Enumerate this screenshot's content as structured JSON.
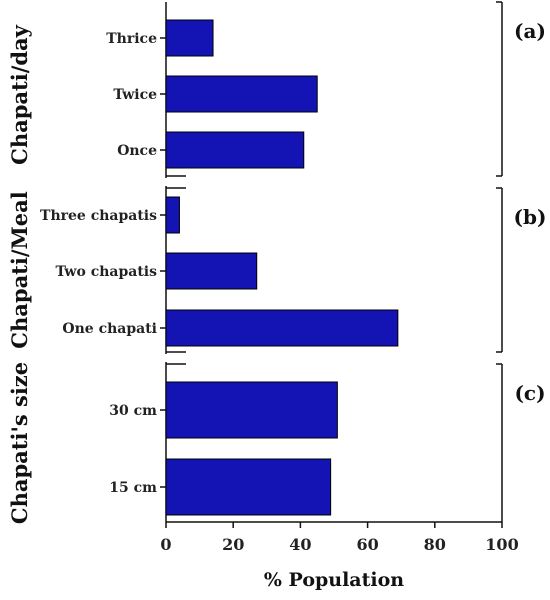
{
  "chart_data": {
    "type": "bar",
    "orientation": "horizontal",
    "xlabel": "% Population",
    "xlim": [
      0,
      100
    ],
    "xticks": [
      0,
      20,
      40,
      60,
      80,
      100
    ],
    "bar_color": "#1414b4",
    "panels": [
      {
        "label": "(a)",
        "ylabel": "Chapati/day",
        "categories": [
          "Thrice",
          "Twice",
          "Once"
        ],
        "values": [
          14,
          45,
          41
        ]
      },
      {
        "label": "(b)",
        "ylabel": "Chapati/Meal",
        "categories": [
          "Three chapatis",
          "Two chapatis",
          "One chapati"
        ],
        "values": [
          4,
          27,
          69
        ]
      },
      {
        "label": "(c)",
        "ylabel": "Chapati's size",
        "categories": [
          "30 cm",
          "15 cm"
        ],
        "values": [
          51,
          49
        ]
      }
    ]
  }
}
